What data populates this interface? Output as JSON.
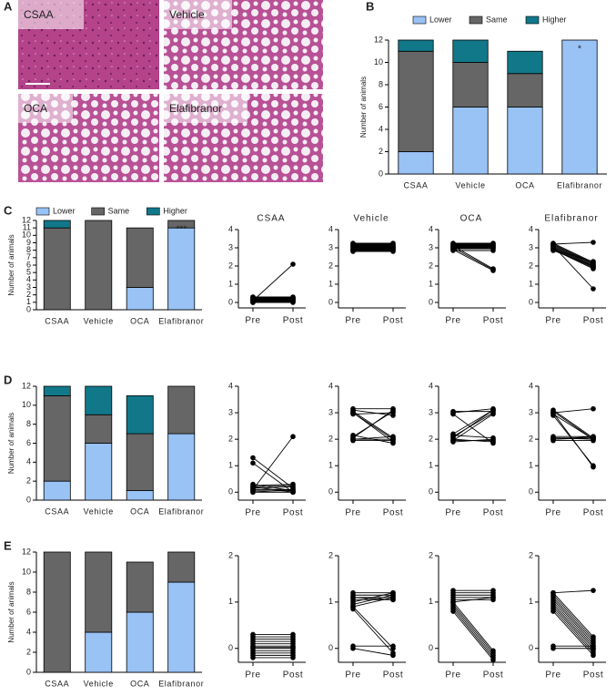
{
  "panel_a": {
    "panel": "A",
    "images": [
      "CSAA",
      "Vehicle",
      "OCA",
      "Elafibranor"
    ]
  },
  "chart_data": [
    {
      "type": "bar",
      "stacked": true,
      "panel": "B",
      "ylabel": "Number of animals",
      "categories": [
        "CSAA",
        "Vehicle",
        "OCA",
        "Elafibranor"
      ],
      "series": [
        {
          "name": "Lower",
          "color": "#99c2f5",
          "values": [
            2,
            6,
            6,
            12
          ]
        },
        {
          "name": "Same",
          "color": "#666666",
          "values": [
            9,
            4,
            3,
            0
          ]
        },
        {
          "name": "Higher",
          "color": "#11788a",
          "values": [
            1,
            2,
            2,
            0
          ]
        }
      ],
      "ylim": [
        0,
        12
      ],
      "yticks": [
        0,
        2,
        4,
        6,
        8,
        10,
        12
      ],
      "legend": "top",
      "annotations": [
        {
          "text": "*",
          "x": "Elafibranor"
        }
      ]
    },
    {
      "type": "bar",
      "stacked": true,
      "panel": "C",
      "ylabel": "Number of animals",
      "categories": [
        "CSAA",
        "Vehicle",
        "OCA",
        "Elafibranor"
      ],
      "series": [
        {
          "name": "Lower",
          "color": "#99c2f5",
          "values": [
            0,
            0,
            3,
            11
          ]
        },
        {
          "name": "Same",
          "color": "#666666",
          "values": [
            11,
            12,
            8,
            1
          ]
        },
        {
          "name": "Higher",
          "color": "#11788a",
          "values": [
            1,
            0,
            0,
            0
          ]
        }
      ],
      "ylim": [
        0,
        12
      ],
      "yticks": [
        0,
        1,
        2,
        3,
        4,
        5,
        6,
        7,
        8,
        9,
        10,
        11,
        12
      ],
      "legend": "top",
      "annotations": [
        {
          "text": "***",
          "x": "Elafibranor"
        }
      ]
    },
    {
      "type": "line",
      "title": "CSAA",
      "categories": [
        "Pre",
        "Post"
      ],
      "ylim": [
        -0.3,
        4
      ],
      "yticks": [
        0,
        1,
        2,
        3,
        4
      ],
      "color": "#000000",
      "series": [
        {
          "values": [
            0,
            0
          ]
        },
        {
          "values": [
            0.05,
            0.05
          ]
        },
        {
          "values": [
            0.1,
            0.1
          ]
        },
        {
          "values": [
            0.15,
            0.15
          ]
        },
        {
          "values": [
            0.2,
            0.2
          ]
        },
        {
          "values": [
            0.25,
            0.25
          ]
        },
        {
          "values": [
            0.3,
            0.3
          ]
        },
        {
          "values": [
            0,
            0.05
          ]
        },
        {
          "values": [
            0.1,
            0.15
          ]
        },
        {
          "values": [
            0.2,
            0.25
          ]
        },
        {
          "values": [
            0.3,
            0.2
          ]
        },
        {
          "values": [
            0.1,
            2.1
          ]
        }
      ]
    },
    {
      "type": "line",
      "title": "Vehicle",
      "categories": [
        "Pre",
        "Post"
      ],
      "ylim": [
        -0.3,
        4
      ],
      "yticks": [
        0,
        1,
        2,
        3,
        4
      ],
      "color": "#000000",
      "series": [
        {
          "values": [
            2.8,
            2.8
          ]
        },
        {
          "values": [
            2.85,
            2.85
          ]
        },
        {
          "values": [
            2.9,
            2.9
          ]
        },
        {
          "values": [
            2.95,
            2.95
          ]
        },
        {
          "values": [
            3,
            3
          ]
        },
        {
          "values": [
            3.05,
            3.05
          ]
        },
        {
          "values": [
            3.1,
            3.1
          ]
        },
        {
          "values": [
            3.15,
            3.15
          ]
        },
        {
          "values": [
            3.2,
            3.2
          ]
        },
        {
          "values": [
            3.25,
            3.25
          ]
        },
        {
          "values": [
            2.9,
            2.95
          ]
        },
        {
          "values": [
            3.1,
            3.05
          ]
        }
      ]
    },
    {
      "type": "line",
      "title": "OCA",
      "categories": [
        "Pre",
        "Post"
      ],
      "ylim": [
        -0.3,
        4
      ],
      "yticks": [
        0,
        1,
        2,
        3,
        4
      ],
      "color": "#000000",
      "series": [
        {
          "values": [
            2.85,
            2.85
          ]
        },
        {
          "values": [
            2.95,
            2.95
          ]
        },
        {
          "values": [
            3,
            3
          ]
        },
        {
          "values": [
            3.05,
            3.05
          ]
        },
        {
          "values": [
            3.1,
            3.1
          ]
        },
        {
          "values": [
            3.15,
            3.15
          ]
        },
        {
          "values": [
            3.2,
            3.2
          ]
        },
        {
          "values": [
            3.25,
            3.25
          ]
        },
        {
          "values": [
            2.9,
            1.75
          ]
        },
        {
          "values": [
            3,
            1.8
          ]
        },
        {
          "values": [
            3.1,
            1.85
          ]
        }
      ]
    },
    {
      "type": "line",
      "title": "Elafibranor",
      "categories": [
        "Pre",
        "Post"
      ],
      "ylim": [
        -0.3,
        4
      ],
      "yticks": [
        0,
        1,
        2,
        3,
        4
      ],
      "color": "#000000",
      "series": [
        {
          "values": [
            3.2,
            3.3
          ]
        },
        {
          "values": [
            2.85,
            2
          ]
        },
        {
          "values": [
            2.9,
            1.85
          ]
        },
        {
          "values": [
            2.95,
            1.9
          ]
        },
        {
          "values": [
            3,
            1.95
          ]
        },
        {
          "values": [
            3.05,
            2
          ]
        },
        {
          "values": [
            3.1,
            2.05
          ]
        },
        {
          "values": [
            3.15,
            2.1
          ]
        },
        {
          "values": [
            3.2,
            2.15
          ]
        },
        {
          "values": [
            3.25,
            2.2
          ]
        },
        {
          "values": [
            2.9,
            2.25
          ]
        },
        {
          "values": [
            3.1,
            0.75
          ]
        }
      ]
    },
    {
      "type": "bar",
      "stacked": true,
      "panel": "D",
      "ylabel": "Number of animals",
      "categories": [
        "CSAA",
        "Vehicle",
        "OCA",
        "Elafibranor"
      ],
      "series": [
        {
          "name": "Lower",
          "color": "#99c2f5",
          "values": [
            2,
            6,
            1,
            7
          ]
        },
        {
          "name": "Same",
          "color": "#666666",
          "values": [
            9,
            3,
            6,
            5
          ]
        },
        {
          "name": "Higher",
          "color": "#11788a",
          "values": [
            1,
            3,
            4,
            0
          ]
        }
      ],
      "ylim": [
        0,
        12
      ],
      "yticks": [
        0,
        2,
        4,
        6,
        8,
        10,
        12
      ]
    },
    {
      "type": "line",
      "categories": [
        "Pre",
        "Post"
      ],
      "ylim": [
        -0.3,
        4
      ],
      "yticks": [
        0,
        1,
        2,
        3,
        4
      ],
      "color": "#000000",
      "series": [
        {
          "values": [
            0.1,
            2.1
          ]
        },
        {
          "values": [
            1.3,
            0.15
          ]
        },
        {
          "values": [
            1.1,
            0
          ]
        },
        {
          "values": [
            0,
            0
          ]
        },
        {
          "values": [
            0.05,
            0.05
          ]
        },
        {
          "values": [
            0.1,
            0.1
          ]
        },
        {
          "values": [
            0.15,
            0.2
          ]
        },
        {
          "values": [
            0.2,
            0.25
          ]
        },
        {
          "values": [
            0.25,
            0.3
          ]
        },
        {
          "values": [
            0.3,
            0.05
          ]
        },
        {
          "values": [
            0,
            0.1
          ]
        },
        {
          "values": [
            0.2,
            0
          ]
        }
      ]
    },
    {
      "type": "line",
      "categories": [
        "Pre",
        "Post"
      ],
      "ylim": [
        -0.3,
        4
      ],
      "yticks": [
        0,
        1,
        2,
        3,
        4
      ],
      "color": "#000000",
      "series": [
        {
          "values": [
            2,
            2
          ]
        },
        {
          "values": [
            1.95,
            1.95
          ]
        },
        {
          "values": [
            2.05,
            3.1
          ]
        },
        {
          "values": [
            2.1,
            3.05
          ]
        },
        {
          "values": [
            2.15,
            1.85
          ]
        },
        {
          "values": [
            3,
            2
          ]
        },
        {
          "values": [
            3.05,
            2.05
          ]
        },
        {
          "values": [
            3.1,
            2.9
          ]
        },
        {
          "values": [
            2.95,
            3
          ]
        },
        {
          "values": [
            3.15,
            3.15
          ]
        },
        {
          "values": [
            2,
            2.1
          ]
        },
        {
          "values": [
            3,
            1.9
          ]
        }
      ]
    },
    {
      "type": "line",
      "categories": [
        "Pre",
        "Post"
      ],
      "ylim": [
        -0.3,
        4
      ],
      "yticks": [
        0,
        1,
        2,
        3,
        4
      ],
      "color": "#000000",
      "series": [
        {
          "values": [
            1.95,
            1.95
          ]
        },
        {
          "values": [
            2,
            1.9
          ]
        },
        {
          "values": [
            2.05,
            3.1
          ]
        },
        {
          "values": [
            2.1,
            3
          ]
        },
        {
          "values": [
            1.9,
            2
          ]
        },
        {
          "values": [
            2.15,
            2.05
          ]
        },
        {
          "values": [
            3,
            3.15
          ]
        },
        {
          "values": [
            3.05,
            3.05
          ]
        },
        {
          "values": [
            2.95,
            1.85
          ]
        },
        {
          "values": [
            2.2,
            3.1
          ]
        },
        {
          "values": [
            1.95,
            2.95
          ]
        }
      ]
    },
    {
      "type": "line",
      "categories": [
        "Pre",
        "Post"
      ],
      "ylim": [
        -0.3,
        4
      ],
      "yticks": [
        0,
        1,
        2,
        3,
        4
      ],
      "color": "#000000",
      "series": [
        {
          "values": [
            3,
            3.15
          ]
        },
        {
          "values": [
            3.1,
            2.05
          ]
        },
        {
          "values": [
            2.9,
            1
          ]
        },
        {
          "values": [
            3,
            0.95
          ]
        },
        {
          "values": [
            2.95,
            2
          ]
        },
        {
          "values": [
            2,
            2.1
          ]
        },
        {
          "values": [
            2.05,
            2
          ]
        },
        {
          "values": [
            1.95,
            1.95
          ]
        },
        {
          "values": [
            2.1,
            2.1
          ]
        },
        {
          "values": [
            2,
            2.05
          ]
        },
        {
          "values": [
            2.05,
            2.05
          ]
        },
        {
          "values": [
            3.05,
            2
          ]
        }
      ]
    },
    {
      "type": "bar",
      "stacked": true,
      "panel": "E",
      "ylabel": "Number of animals",
      "categories": [
        "CSAA",
        "Vehicle",
        "OCA",
        "Elafibranor"
      ],
      "series": [
        {
          "name": "Lower",
          "color": "#99c2f5",
          "values": [
            0,
            4,
            6,
            9
          ]
        },
        {
          "name": "Same",
          "color": "#666666",
          "values": [
            12,
            8,
            5,
            3
          ]
        },
        {
          "name": "Higher",
          "color": "#11788a",
          "values": [
            0,
            0,
            0,
            0
          ]
        }
      ],
      "ylim": [
        0,
        12
      ],
      "yticks": [
        0,
        2,
        4,
        6,
        8,
        10,
        12
      ]
    },
    {
      "type": "line",
      "categories": [
        "Pre",
        "Post"
      ],
      "ylim": [
        -0.3,
        2
      ],
      "yticks": [
        0,
        1,
        2
      ],
      "color": "#000000",
      "series": [
        {
          "values": [
            -0.2,
            -0.2
          ]
        },
        {
          "values": [
            -0.15,
            -0.15
          ]
        },
        {
          "values": [
            -0.1,
            -0.1
          ]
        },
        {
          "values": [
            -0.05,
            -0.05
          ]
        },
        {
          "values": [
            0,
            0
          ]
        },
        {
          "values": [
            0.05,
            0.05
          ]
        },
        {
          "values": [
            0.1,
            0.1
          ]
        },
        {
          "values": [
            0.15,
            0.15
          ]
        },
        {
          "values": [
            0.2,
            0.2
          ]
        },
        {
          "values": [
            0.25,
            0.25
          ]
        },
        {
          "values": [
            0.3,
            0.3
          ]
        },
        {
          "values": [
            0.02,
            0.02
          ]
        }
      ]
    },
    {
      "type": "line",
      "categories": [
        "Pre",
        "Post"
      ],
      "ylim": [
        -0.3,
        2
      ],
      "yticks": [
        0,
        1,
        2
      ],
      "color": "#000000",
      "series": [
        {
          "values": [
            1.2,
            1.2
          ]
        },
        {
          "values": [
            1.15,
            1.15
          ]
        },
        {
          "values": [
            1.1,
            1.1
          ]
        },
        {
          "values": [
            1.05,
            1.05
          ]
        },
        {
          "values": [
            1,
            1.2
          ]
        },
        {
          "values": [
            0.95,
            1.15
          ]
        },
        {
          "values": [
            0.9,
            1.1
          ]
        },
        {
          "values": [
            1.1,
            1.05
          ]
        },
        {
          "values": [
            0.9,
            0
          ]
        },
        {
          "values": [
            0.85,
            -0.1
          ]
        },
        {
          "values": [
            0.05,
            0.05
          ]
        },
        {
          "values": [
            0,
            -0.15
          ]
        }
      ]
    },
    {
      "type": "line",
      "categories": [
        "Pre",
        "Post"
      ],
      "ylim": [
        -0.3,
        2
      ],
      "yticks": [
        0,
        1,
        2
      ],
      "color": "#000000",
      "series": [
        {
          "values": [
            1.25,
            1.25
          ]
        },
        {
          "values": [
            1.2,
            1.2
          ]
        },
        {
          "values": [
            1.15,
            1.15
          ]
        },
        {
          "values": [
            1.1,
            1.1
          ]
        },
        {
          "values": [
            1.05,
            1.05
          ]
        },
        {
          "values": [
            1,
            -0.05
          ]
        },
        {
          "values": [
            0.95,
            -0.1
          ]
        },
        {
          "values": [
            0.9,
            -0.15
          ]
        },
        {
          "values": [
            0.85,
            -0.2
          ]
        },
        {
          "values": [
            0.8,
            -0.25
          ]
        },
        {
          "values": [
            1,
            1.1
          ]
        }
      ]
    },
    {
      "type": "line",
      "categories": [
        "Pre",
        "Post"
      ],
      "ylim": [
        -0.3,
        2
      ],
      "yticks": [
        0,
        1,
        2
      ],
      "color": "#000000",
      "series": [
        {
          "values": [
            1.2,
            1.25
          ]
        },
        {
          "values": [
            1.15,
            0.2
          ]
        },
        {
          "values": [
            1.1,
            0.15
          ]
        },
        {
          "values": [
            1.05,
            0.1
          ]
        },
        {
          "values": [
            1,
            0.05
          ]
        },
        {
          "values": [
            0.95,
            0
          ]
        },
        {
          "values": [
            0.9,
            -0.05
          ]
        },
        {
          "values": [
            0.85,
            -0.1
          ]
        },
        {
          "values": [
            0.8,
            -0.15
          ]
        },
        {
          "values": [
            1.2,
            0.25
          ]
        },
        {
          "values": [
            0.05,
            0.05
          ]
        },
        {
          "values": [
            0,
            0
          ]
        }
      ]
    }
  ]
}
